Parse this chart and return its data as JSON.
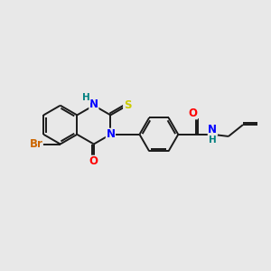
{
  "background_color": "#e8e8e8",
  "bond_color": "#1a1a1a",
  "atom_colors": {
    "N": "#0000ff",
    "O": "#ff0000",
    "S": "#cccc00",
    "Br": "#cc6600",
    "H": "#008080",
    "C": "#1a1a1a"
  },
  "figsize": [
    3.0,
    3.0
  ],
  "dpi": 100,
  "lw": 1.4,
  "fs": 8.5,
  "BL": 0.72
}
